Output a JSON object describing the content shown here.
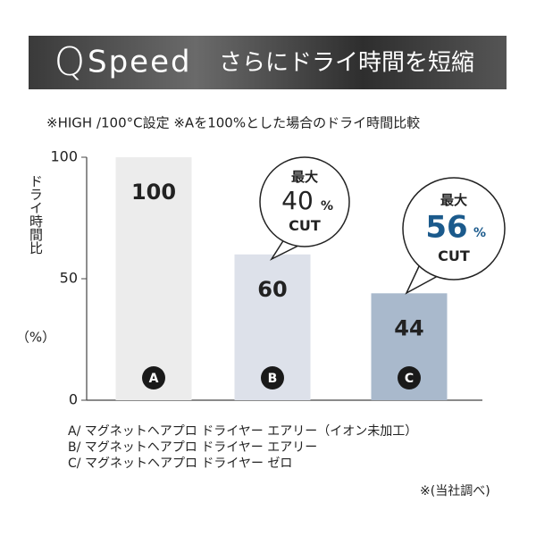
{
  "chart_data": {
    "type": "bar",
    "header": {
      "logo_mark": "Q",
      "logo_text": "Speed",
      "title": "さらにドライ時間を短縮"
    },
    "subtitle": "※HIGH /100°C設定 ※Aを100%とした場合のドライ時間比較",
    "y_label": [
      "ドライ時間比",
      "（%）"
    ],
    "categories": [
      "A",
      "B",
      "C"
    ],
    "values": [
      100,
      60,
      44
    ],
    "colors": [
      "#ececec",
      "#dde1ea",
      "#a9b9cc"
    ],
    "ylim": [
      0,
      100
    ],
    "yticks": [
      0,
      50,
      100
    ],
    "annotations": [
      {
        "top": "最大",
        "value": 40,
        "unit": "%",
        "bottom": "CUT",
        "color": "#222222"
      },
      {
        "top": "最大",
        "value": 56,
        "unit": "%",
        "bottom": "CUT",
        "color": "#1b5a8c"
      }
    ],
    "notes": [
      "A/ マグネットヘアプロ ドライヤー エアリー（イオン未加工）",
      "B/ マグネットヘアプロ ドライヤー エアリー",
      "C/ マグネットヘアプロ ドライヤー ゼロ"
    ],
    "source": "※(当社調べ)"
  }
}
